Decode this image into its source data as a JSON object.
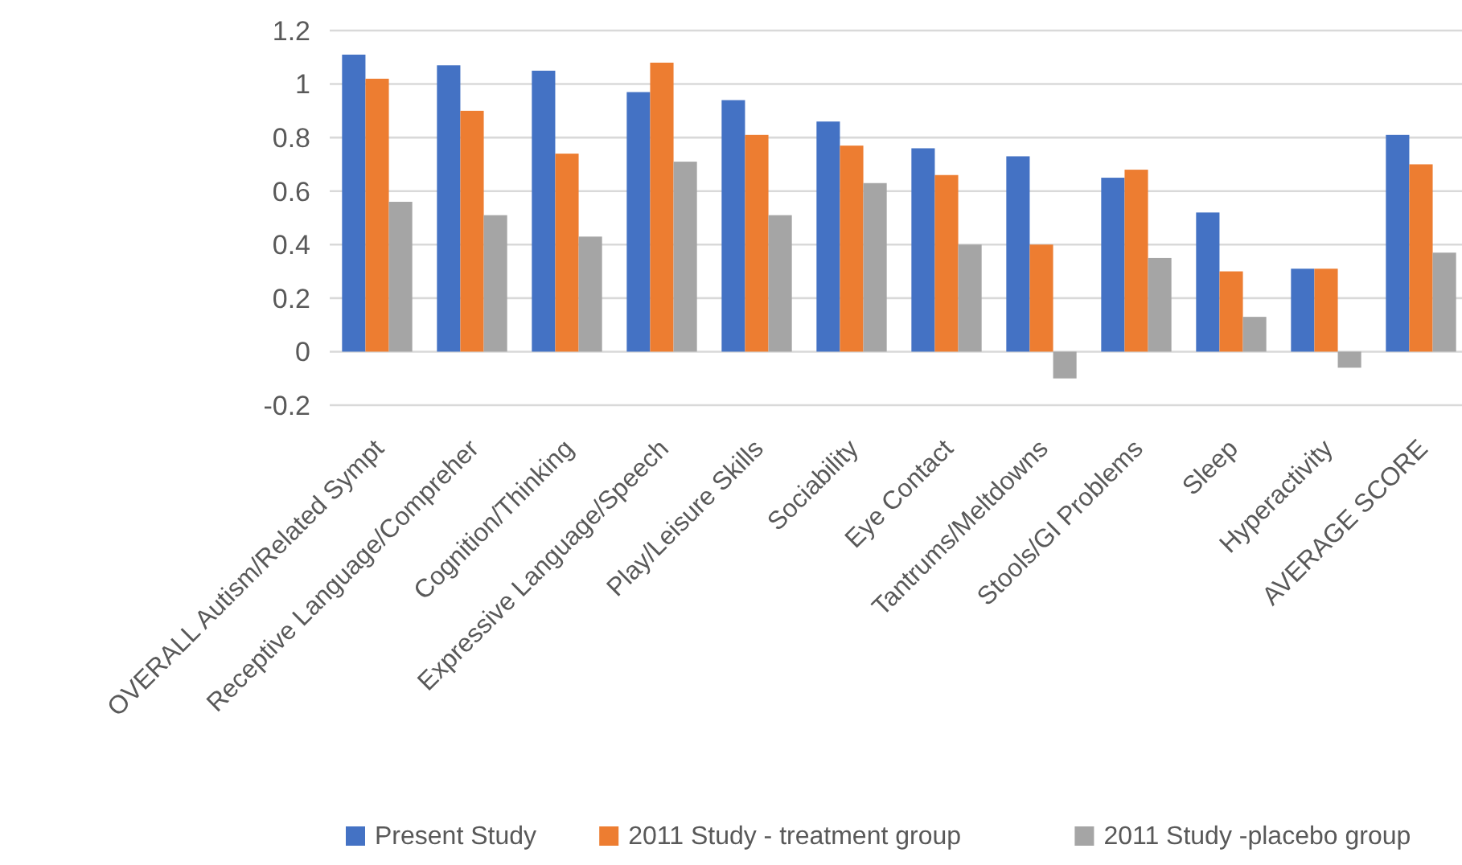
{
  "chart_data": {
    "type": "bar",
    "categories": [
      "OVERALL Autism/Related Sympt",
      "Receptive Language/Compreher",
      "Cognition/Thinking",
      "Expressive Language/Speech",
      "Play/Leisure Skills",
      "Sociability",
      "Eye Contact",
      "Tantrums/Meltdowns",
      "Stools/GI Problems",
      "Sleep",
      "Hyperactivity",
      "AVERAGE SCORE"
    ],
    "series": [
      {
        "name": "Present Study",
        "color": "#4472c4",
        "values": [
          1.11,
          1.07,
          1.05,
          0.97,
          0.94,
          0.86,
          0.76,
          0.73,
          0.65,
          0.52,
          0.31,
          0.81
        ]
      },
      {
        "name": "2011 Study - treatment group",
        "color": "#ed7d31",
        "values": [
          1.02,
          0.9,
          0.74,
          1.08,
          0.81,
          0.77,
          0.66,
          0.4,
          0.68,
          0.3,
          0.31,
          0.7
        ]
      },
      {
        "name": "2011 Study -placebo group",
        "color": "#a5a5a5",
        "values": [
          0.56,
          0.51,
          0.43,
          0.71,
          0.51,
          0.63,
          0.4,
          -0.1,
          0.35,
          0.13,
          -0.06,
          0.37
        ]
      }
    ],
    "ylim": [
      -0.2,
      1.2
    ],
    "yticks": [
      -0.2,
      0,
      0.2,
      0.4,
      0.6,
      0.8,
      1,
      1.2
    ],
    "grid": "y",
    "legend": "bottom"
  }
}
